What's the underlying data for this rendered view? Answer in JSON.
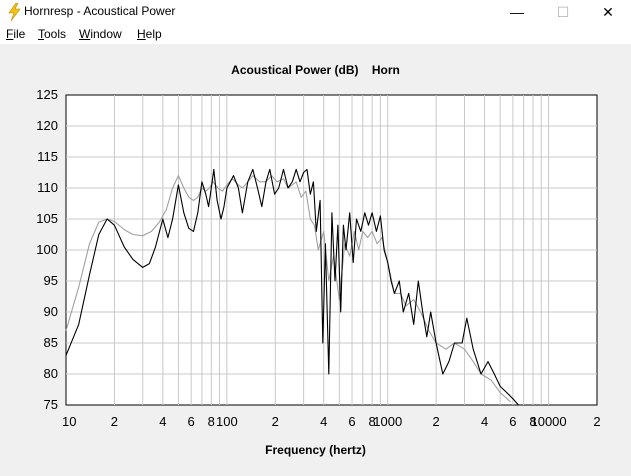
{
  "window": {
    "title": "Hornresp - Acoustical Power",
    "minimize_glyph": "—",
    "maximize_glyph": "☐",
    "close_glyph": "✕",
    "icon": "lightning-bolt-icon"
  },
  "menu": [
    "File",
    "Tools",
    "Window",
    "Help"
  ],
  "colors": {
    "primary_trace": "#000000",
    "secondary_trace": "#a0a0a0",
    "grid": "#c8c8c8",
    "plot_background": "#ffffff",
    "app_icon": "#f4c20d"
  },
  "chart_data": {
    "type": "line",
    "title": "Acoustical Power (dB)    Horn",
    "xlabel": "Frequency (hertz)",
    "ylabel": "",
    "x_scale": "log",
    "xlim": [
      10,
      20000
    ],
    "ylim": [
      75,
      125
    ],
    "yticks": [
      "125",
      "120",
      "115",
      "110",
      "105",
      "100",
      "95",
      "90",
      "85",
      "80",
      "75"
    ],
    "xtick_labels": [
      {
        "x": 10,
        "label": "10"
      },
      {
        "x": 20,
        "label": "2"
      },
      {
        "x": 40,
        "label": "4"
      },
      {
        "x": 60,
        "label": "6"
      },
      {
        "x": 80,
        "label": "8"
      },
      {
        "x": 100,
        "label": "100"
      },
      {
        "x": 200,
        "label": "2"
      },
      {
        "x": 400,
        "label": "4"
      },
      {
        "x": 600,
        "label": "6"
      },
      {
        "x": 800,
        "label": "8"
      },
      {
        "x": 1000,
        "label": "1000"
      },
      {
        "x": 2000,
        "label": "2"
      },
      {
        "x": 4000,
        "label": "4"
      },
      {
        "x": 6000,
        "label": "6"
      },
      {
        "x": 8000,
        "label": "8"
      },
      {
        "x": 10000,
        "label": "10000"
      },
      {
        "x": 20000,
        "label": "2"
      }
    ],
    "grid": true,
    "series": [
      {
        "color": "#000000",
        "points": [
          [
            10,
            83
          ],
          [
            12,
            88
          ],
          [
            14,
            96
          ],
          [
            16,
            102.5
          ],
          [
            18,
            105
          ],
          [
            20,
            104
          ],
          [
            23,
            100.5
          ],
          [
            26,
            98.5
          ],
          [
            30,
            97.2
          ],
          [
            33,
            97.8
          ],
          [
            36,
            100.5
          ],
          [
            40,
            105
          ],
          [
            43,
            102
          ],
          [
            46,
            105
          ],
          [
            50,
            110.5
          ],
          [
            54,
            106
          ],
          [
            58,
            103.5
          ],
          [
            62,
            103
          ],
          [
            66,
            106
          ],
          [
            70,
            111
          ],
          [
            74,
            109
          ],
          [
            77,
            107
          ],
          [
            80,
            110
          ],
          [
            83,
            113
          ],
          [
            87,
            108
          ],
          [
            92,
            105
          ],
          [
            96,
            107
          ],
          [
            100,
            110
          ],
          [
            105,
            111
          ],
          [
            110,
            112
          ],
          [
            118,
            110
          ],
          [
            125,
            106
          ],
          [
            135,
            111
          ],
          [
            145,
            113
          ],
          [
            155,
            110
          ],
          [
            165,
            107
          ],
          [
            175,
            111
          ],
          [
            185,
            113
          ],
          [
            198,
            109
          ],
          [
            210,
            110
          ],
          [
            225,
            113
          ],
          [
            240,
            110
          ],
          [
            255,
            111
          ],
          [
            270,
            113
          ],
          [
            285,
            111
          ],
          [
            300,
            112.5
          ],
          [
            315,
            113
          ],
          [
            330,
            109
          ],
          [
            345,
            111
          ],
          [
            360,
            103
          ],
          [
            380,
            108
          ],
          [
            395,
            85
          ],
          [
            410,
            101
          ],
          [
            430,
            80
          ],
          [
            450,
            106
          ],
          [
            470,
            95
          ],
          [
            490,
            104
          ],
          [
            510,
            90
          ],
          [
            530,
            104
          ],
          [
            550,
            100
          ],
          [
            580,
            106
          ],
          [
            610,
            98
          ],
          [
            640,
            105
          ],
          [
            680,
            103
          ],
          [
            720,
            106
          ],
          [
            760,
            104
          ],
          [
            800,
            106
          ],
          [
            850,
            103
          ],
          [
            900,
            105.5
          ],
          [
            950,
            100
          ],
          [
            1000,
            98
          ],
          [
            1050,
            95
          ],
          [
            1100,
            93
          ],
          [
            1180,
            95
          ],
          [
            1250,
            90
          ],
          [
            1350,
            93
          ],
          [
            1450,
            88
          ],
          [
            1550,
            95
          ],
          [
            1650,
            90
          ],
          [
            1750,
            86
          ],
          [
            1850,
            90
          ],
          [
            2000,
            85
          ],
          [
            2200,
            80
          ],
          [
            2400,
            82
          ],
          [
            2600,
            85
          ],
          [
            2900,
            85
          ],
          [
            3100,
            89
          ],
          [
            3400,
            84
          ],
          [
            3800,
            80
          ],
          [
            4200,
            82
          ],
          [
            4600,
            80
          ],
          [
            5000,
            78
          ],
          [
            5500,
            77
          ],
          [
            6000,
            76
          ],
          [
            6500,
            75
          ]
        ]
      },
      {
        "color": "#a0a0a0",
        "points": [
          [
            10,
            87
          ],
          [
            12,
            94
          ],
          [
            14,
            101
          ],
          [
            16,
            104.5
          ],
          [
            18,
            105
          ],
          [
            20,
            104.6
          ],
          [
            23,
            103.3
          ],
          [
            26,
            102.5
          ],
          [
            30,
            102.3
          ],
          [
            34,
            103
          ],
          [
            38,
            104.5
          ],
          [
            42,
            106.5
          ],
          [
            46,
            110
          ],
          [
            50,
            112
          ],
          [
            54,
            110
          ],
          [
            58,
            108.5
          ],
          [
            62,
            108
          ],
          [
            66,
            108.5
          ],
          [
            70,
            110
          ],
          [
            74,
            109.5
          ],
          [
            78,
            110
          ],
          [
            82,
            111
          ],
          [
            88,
            110
          ],
          [
            94,
            109.5
          ],
          [
            100,
            110.5
          ],
          [
            108,
            111.5
          ],
          [
            118,
            110.5
          ],
          [
            125,
            110
          ],
          [
            135,
            111
          ],
          [
            145,
            112
          ],
          [
            160,
            111
          ],
          [
            175,
            111
          ],
          [
            190,
            112
          ],
          [
            205,
            111
          ],
          [
            225,
            111.5
          ],
          [
            240,
            110
          ],
          [
            255,
            110.5
          ],
          [
            270,
            111
          ],
          [
            290,
            108.5
          ],
          [
            310,
            109.5
          ],
          [
            330,
            105
          ],
          [
            350,
            104
          ],
          [
            370,
            100
          ],
          [
            400,
            103
          ],
          [
            430,
            95
          ],
          [
            460,
            99
          ],
          [
            500,
            92
          ],
          [
            540,
            101
          ],
          [
            580,
            99
          ],
          [
            620,
            103
          ],
          [
            660,
            100
          ],
          [
            700,
            103
          ],
          [
            750,
            102
          ],
          [
            800,
            103
          ],
          [
            860,
            101
          ],
          [
            920,
            102
          ],
          [
            1000,
            98
          ],
          [
            1100,
            93
          ],
          [
            1200,
            93
          ],
          [
            1300,
            91
          ],
          [
            1450,
            92
          ],
          [
            1600,
            90
          ],
          [
            1800,
            87
          ],
          [
            2000,
            85
          ],
          [
            2300,
            84
          ],
          [
            2600,
            85
          ],
          [
            3000,
            84
          ],
          [
            3400,
            82
          ],
          [
            3800,
            80
          ],
          [
            4400,
            79
          ],
          [
            5000,
            77
          ],
          [
            5800,
            75.5
          ]
        ]
      }
    ]
  }
}
